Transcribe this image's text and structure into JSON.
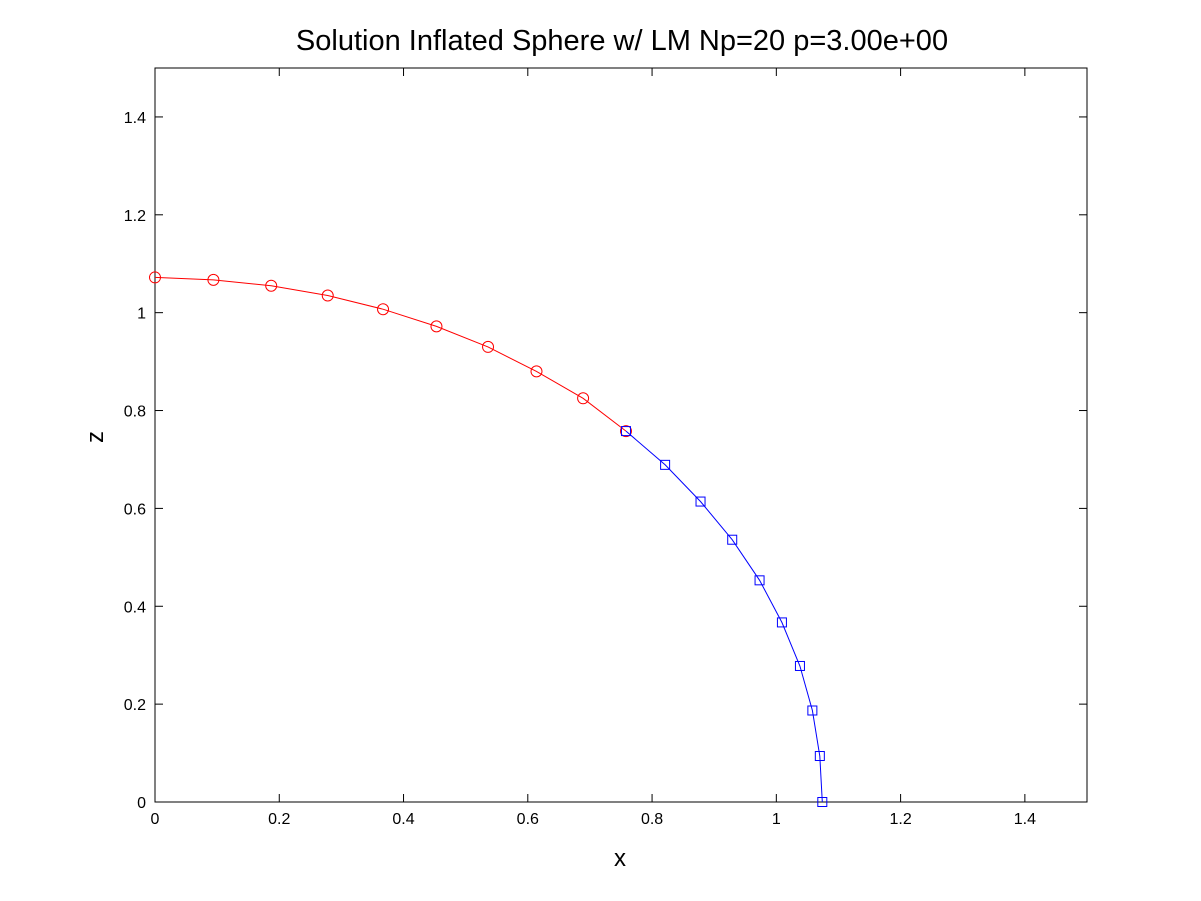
{
  "chart_data": {
    "type": "line",
    "title": "Solution Inflated Sphere w/ LM Np=20 p=3.00e+00",
    "xlabel": "x",
    "ylabel": "z",
    "xlim": [
      0,
      1.5
    ],
    "ylim": [
      0,
      1.5
    ],
    "xticks": [
      0,
      0.2,
      0.4,
      0.6,
      0.8,
      1,
      1.2,
      1.4
    ],
    "yticks": [
      0,
      0.2,
      0.4,
      0.6,
      0.8,
      1,
      1.2,
      1.4
    ],
    "xtick_labels": [
      "0",
      "0.2",
      "0.4",
      "0.6",
      "0.8",
      "1",
      "1.2",
      "1.4"
    ],
    "ytick_labels": [
      "0",
      "0.2",
      "0.4",
      "0.6",
      "0.8",
      "1",
      "1.2",
      "1.4"
    ],
    "grid": false,
    "legend": "none",
    "series": [
      {
        "color": "#ff0000",
        "marker": "circle",
        "x": [
          0,
          0.094,
          0.187,
          0.278,
          0.367,
          0.453,
          0.536,
          0.614,
          0.689,
          0.758
        ],
        "y": [
          1.072,
          1.067,
          1.055,
          1.035,
          1.007,
          0.972,
          0.93,
          0.88,
          0.825,
          0.758
        ]
      },
      {
        "color": "#0000ff",
        "marker": "square",
        "x": [
          0.758,
          0.821,
          0.878,
          0.929,
          0.973,
          1.009,
          1.038,
          1.058,
          1.07,
          1.074
        ],
        "y": [
          0.758,
          0.689,
          0.614,
          0.536,
          0.453,
          0.367,
          0.278,
          0.187,
          0.094,
          0
        ]
      }
    ]
  }
}
